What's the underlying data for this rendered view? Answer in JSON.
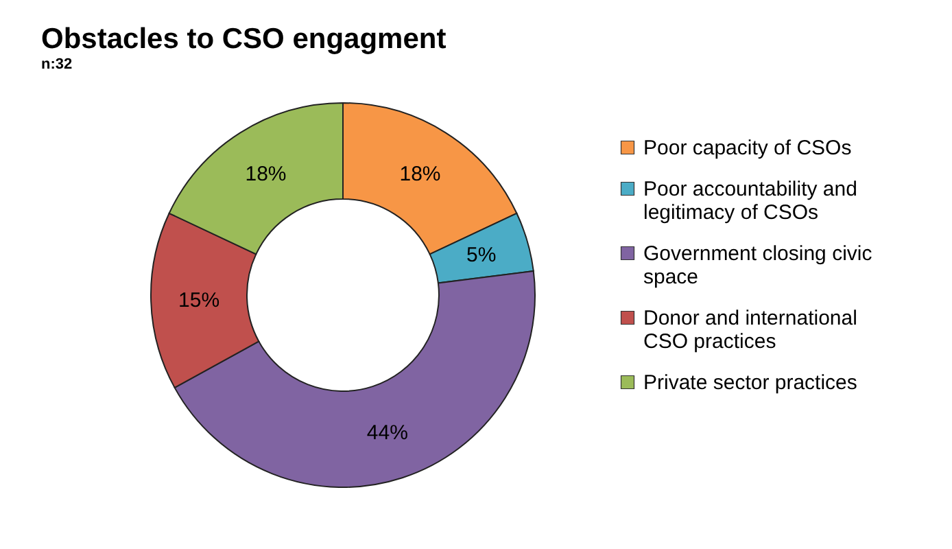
{
  "chart_data": {
    "type": "donut",
    "title": "Obstacles to CSO engagment",
    "subtitle": "n:32",
    "categories": [
      "Poor capacity of CSOs",
      "Poor accountability and legitimacy of CSOs",
      "Government closing civic space",
      "Donor and international CSO practices",
      "Private sector practices"
    ],
    "values": [
      18,
      5,
      44,
      15,
      18
    ],
    "colors": [
      "#f79646",
      "#4bacc6",
      "#8064a2",
      "#c0504d",
      "#9bbb59"
    ],
    "value_labels": [
      "18%",
      "5%",
      "44%",
      "15%",
      "18%"
    ],
    "legend": "right"
  }
}
